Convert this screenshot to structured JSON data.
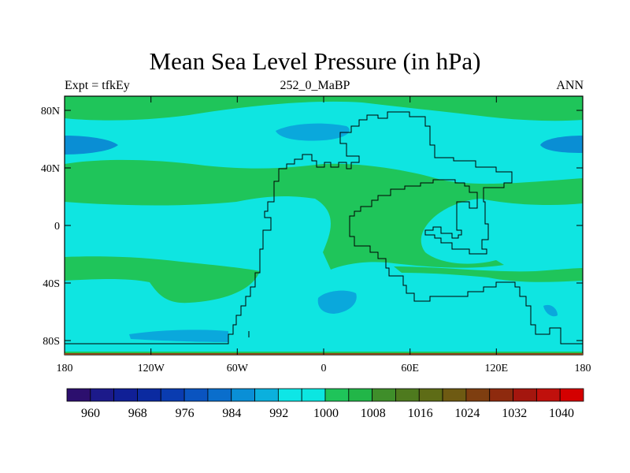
{
  "title": "Mean Sea Level Pressure (in hPa)",
  "left_label": "Expt = tfkEy",
  "center_label": "252_0_MaBP",
  "right_label": "ANN",
  "y_tick_labels": [
    "80N",
    "40N",
    "0",
    "40S",
    "80S"
  ],
  "x_tick_labels": [
    "180",
    "120W",
    "60W",
    "0",
    "60E",
    "120E",
    "180"
  ],
  "colorbar": {
    "labels": [
      "960",
      "968",
      "976",
      "984",
      "992",
      "1000",
      "1008",
      "1016",
      "1024",
      "1032",
      "1040"
    ],
    "colors": [
      "#2c0f6e",
      "#1c1a8a",
      "#101f96",
      "#0b2aa0",
      "#0a3cb0",
      "#0a54c0",
      "#0a6ecc",
      "#0a8fd6",
      "#0bb0dd",
      "#0ee6e6",
      "#0ce6e1",
      "#1fc45a",
      "#22b648",
      "#3f8e2a",
      "#4e7a1e",
      "#5e6c16",
      "#6e5a12",
      "#7e3e10",
      "#8e2a0e",
      "#a4160e",
      "#c0100c",
      "#d40000"
    ]
  },
  "map_colors": {
    "ocean_band": "#0fe5e1",
    "green_band": "#1fc55a",
    "low_pressure": "#0aa8dc",
    "deep_low": "#0a8ed4",
    "coast": "#000000"
  }
}
